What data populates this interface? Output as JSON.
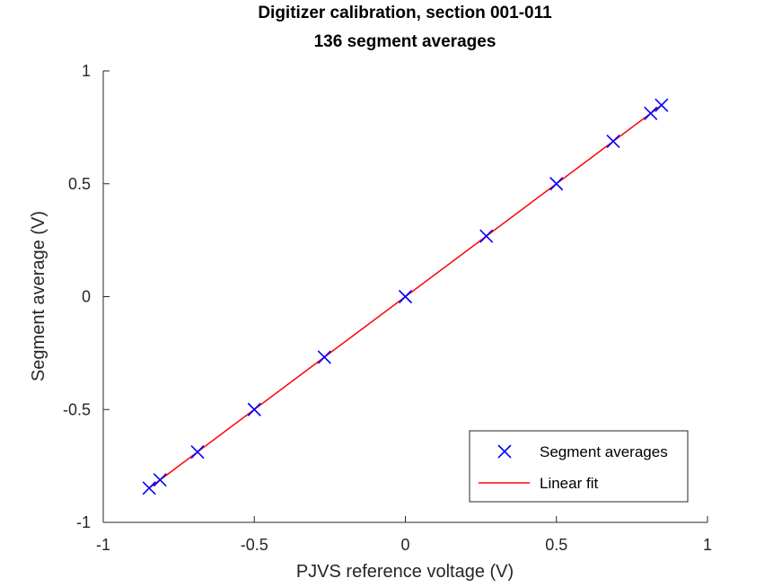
{
  "chart_data": {
    "type": "scatter",
    "title": "Digitizer calibration, section 001-011",
    "subtitle": "136 segment averages",
    "xlabel": "PJVS reference voltage (V)",
    "ylabel": "Segment average (V)",
    "xlim": [
      -1,
      1
    ],
    "ylim": [
      -1,
      1
    ],
    "xticks": [
      "-1",
      "-0.5",
      "0",
      "0.5",
      "1"
    ],
    "yticks": [
      "-1",
      "-0.5",
      "0",
      "0.5",
      "1"
    ],
    "grid": false,
    "legend_position": "bottom-right",
    "series": [
      {
        "name": "Segment averages",
        "type": "scatter",
        "marker": "x",
        "color": "#0000ff",
        "x": [
          -0.848,
          -0.812,
          -0.688,
          -0.5,
          -0.268,
          0.0,
          0.268,
          0.5,
          0.688,
          0.812,
          0.848
        ],
        "y": [
          -0.848,
          -0.812,
          -0.688,
          -0.5,
          -0.268,
          0.0,
          0.268,
          0.5,
          0.688,
          0.812,
          0.848
        ]
      },
      {
        "name": "Linear fit",
        "type": "line",
        "color": "#ff0000",
        "x": [
          -0.848,
          0.848
        ],
        "y": [
          -0.848,
          0.848
        ]
      }
    ]
  }
}
